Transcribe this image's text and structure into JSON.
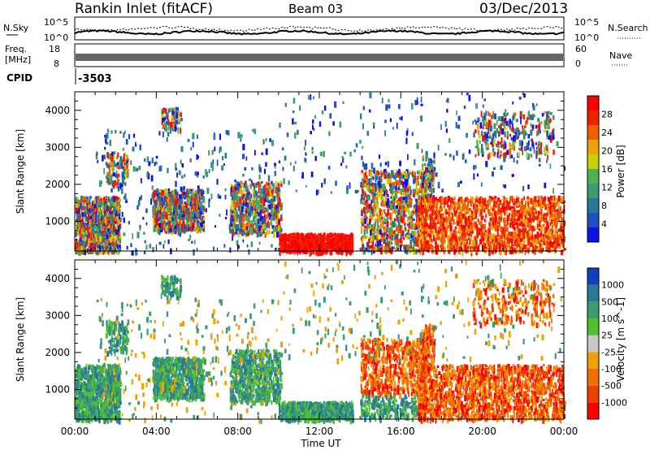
{
  "header": {
    "station": "Rankin Inlet (fitACF)",
    "beam": "Beam 03",
    "date": "03/Dec/2013"
  },
  "noise_panel": {
    "left_label": "N.Sky",
    "left_ticks": [
      "10^5",
      "10^0"
    ],
    "right_label": "N.Search",
    "right_ticks": [
      "10^5",
      "10^0"
    ]
  },
  "freq_panel": {
    "left_label_line1": "Freq.",
    "left_label_line2": "[MHz]",
    "left_ticks": [
      "18",
      "8"
    ],
    "right_label": "Nave",
    "right_ticks": [
      "60",
      "0"
    ]
  },
  "cpid": {
    "label": "CPID",
    "value": "-3503"
  },
  "colors": {
    "power": [
      "#1010e8",
      "#2050c0",
      "#2a7898",
      "#3a9c70",
      "#50b050",
      "#c8d000",
      "#f0a000",
      "#f06000",
      "#f02000",
      "#ff0000"
    ],
    "velocity": [
      "#1040c0",
      "#2a7898",
      "#3a9c70",
      "#50c030",
      "#c8c8c8",
      "#f0a000",
      "#f07000",
      "#f04000",
      "#ff0000"
    ]
  },
  "chart_data": [
    {
      "type": "heatmap",
      "title": "",
      "xlabel": "",
      "ylabel": "Slant Range [km]",
      "xlim": [
        "00:00",
        "24:00"
      ],
      "ylim": [
        200,
        4500
      ],
      "yticks": [
        "1000",
        "2000",
        "3000",
        "4000"
      ],
      "colorbar": {
        "label": "Power [dB]",
        "range": [
          0,
          32
        ],
        "ticks": [
          "4",
          "8",
          "12",
          "16",
          "20",
          "24",
          "28"
        ]
      },
      "regions": [
        {
          "t0": 0.0,
          "t1": 2.0,
          "r0": 200,
          "r1": 1700,
          "value": "strong"
        },
        {
          "t0": 3.8,
          "t1": 6.2,
          "r0": 800,
          "r1": 1800,
          "value": "strong"
        },
        {
          "t0": 8.0,
          "t1": 10.0,
          "r0": 800,
          "r1": 2000,
          "value": "strong"
        },
        {
          "t0": 10.0,
          "t1": 13.5,
          "r0": 200,
          "r1": 600,
          "value": "very strong"
        },
        {
          "t0": 14.0,
          "t1": 17.0,
          "r0": 300,
          "r1": 2300,
          "value": "strong"
        },
        {
          "t0": 17.0,
          "t1": 24.0,
          "r0": 200,
          "r1": 1600,
          "value": "very strong"
        }
      ]
    },
    {
      "type": "heatmap",
      "title": "",
      "xlabel": "Time UT",
      "ylabel": "Slant Range [km]",
      "xlim": [
        "00:00",
        "24:00"
      ],
      "ylim": [
        200,
        4500
      ],
      "xticks": [
        "00:00",
        "04:00",
        "08:00",
        "12:00",
        "16:00",
        "20:00",
        "00:00"
      ],
      "yticks": [
        "1000",
        "2000",
        "3000",
        "4000"
      ],
      "colorbar": {
        "label": "Velocity [m s^-1]",
        "ticks": [
          "1000",
          "500",
          "100",
          "25",
          "-25",
          "-100",
          "-500",
          "-1000"
        ]
      },
      "regions": [
        {
          "t0": 0.0,
          "t1": 10.0,
          "r0": 200,
          "r1": 2000,
          "value": "positive"
        },
        {
          "t0": 10.0,
          "t1": 13.5,
          "r0": 200,
          "r1": 600,
          "value": "positive"
        },
        {
          "t0": 14.0,
          "t1": 17.0,
          "r0": 1000,
          "r1": 2300,
          "value": "negative"
        },
        {
          "t0": 17.0,
          "t1": 24.0,
          "r0": 200,
          "r1": 1600,
          "value": "negative"
        }
      ]
    }
  ]
}
